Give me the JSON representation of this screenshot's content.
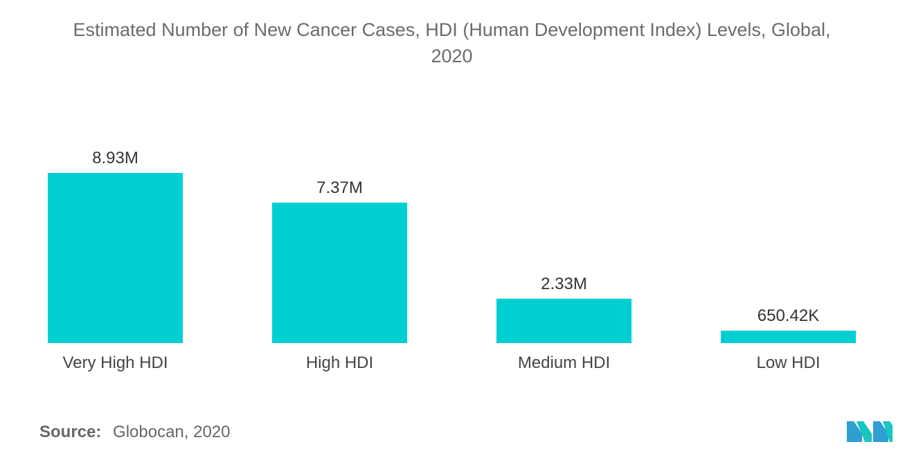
{
  "chart_data": {
    "type": "bar",
    "title_lines": [
      "Estimated Number of New Cancer Cases, HDI (Human Development Index) Levels, Global,",
      "2020"
    ],
    "categories": [
      "Very High HDI",
      "High HDI",
      "Medium HDI",
      "Low HDI"
    ],
    "values": [
      8930000,
      7370000,
      2330000,
      650420
    ],
    "value_labels": [
      "8.93M",
      "7.37M",
      "2.33M",
      "650.42K"
    ],
    "xlabel": "",
    "ylabel": "",
    "ylim": [
      0,
      8930000
    ],
    "grid": false,
    "legend": "none",
    "bar_color": "#00cfd1"
  },
  "source": {
    "label": "Source:",
    "text": "Globocan, 2020"
  },
  "logo": {
    "icon": "mordor-intelligence-logo-icon",
    "colors": [
      "#2e9fd3",
      "#17c6c0"
    ]
  }
}
